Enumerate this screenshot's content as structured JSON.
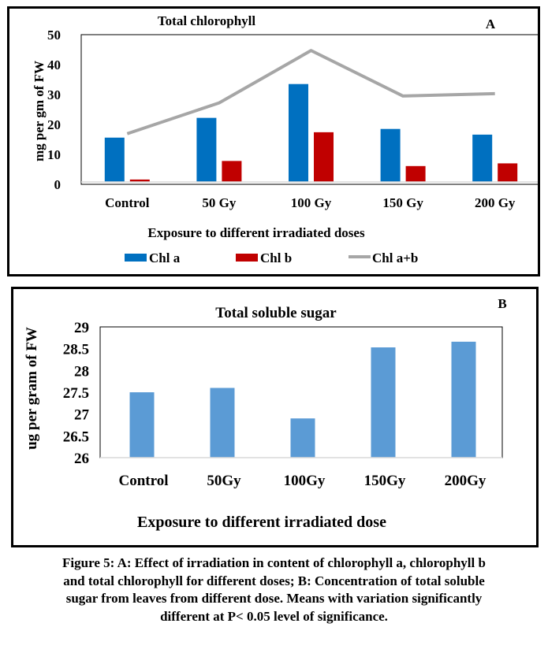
{
  "figure_caption_lines": [
    "Figure 5: A: Effect of irradiation in content of chlorophyll a, chlorophyll b",
    "and total chlorophyll for different doses; B: Concentration of total soluble",
    "sugar from leaves from different dose. Means with variation significantly",
    "different at P< 0.05 level of significance."
  ],
  "colors": {
    "chl_a": "#0070C0",
    "chl_b": "#C00000",
    "chl_ab": "#A6A6A6",
    "sugar": "#5B9BD5"
  },
  "chart_data": [
    {
      "panel_label": "A",
      "type": "bar",
      "title": "Total chlorophyll",
      "xlabel": "Exposure to different irradiated doses",
      "ylabel": "mg per gm of FW",
      "categories": [
        "Control",
        "50 Gy",
        "100 Gy",
        "150 Gy",
        "200 Gy"
      ],
      "ylim": [
        0,
        50
      ],
      "yticks": [
        "0",
        "10",
        "20",
        "30",
        "40",
        "50"
      ],
      "grid": false,
      "legend_position": "bottom",
      "series": [
        {
          "name": "Chl a",
          "type": "bar",
          "values": [
            15.6,
            22.2,
            33.5,
            18.5,
            16.6
          ]
        },
        {
          "name": "Chl b",
          "type": "bar",
          "values": [
            1.6,
            7.8,
            17.4,
            6.1,
            7.0
          ]
        },
        {
          "name": "Chl a+b",
          "type": "line",
          "values": [
            16.9,
            27.2,
            44.7,
            29.5,
            30.3
          ]
        }
      ]
    },
    {
      "panel_label": "B",
      "type": "bar",
      "title": "Total soluble sugar",
      "xlabel": "Exposure to different irradiated dose",
      "ylabel": "ug per gram of FW",
      "categories": [
        "Control",
        "50Gy",
        "100Gy",
        "150Gy",
        "200Gy"
      ],
      "ylim": [
        26,
        29
      ],
      "yticks": [
        "26",
        "26.5",
        "27",
        "27.5",
        "28",
        "28.5",
        "29"
      ],
      "grid": false,
      "legend_position": "none",
      "series": [
        {
          "name": "Total soluble sugar",
          "values": [
            27.5,
            27.6,
            26.9,
            28.53,
            28.66
          ]
        }
      ]
    }
  ]
}
